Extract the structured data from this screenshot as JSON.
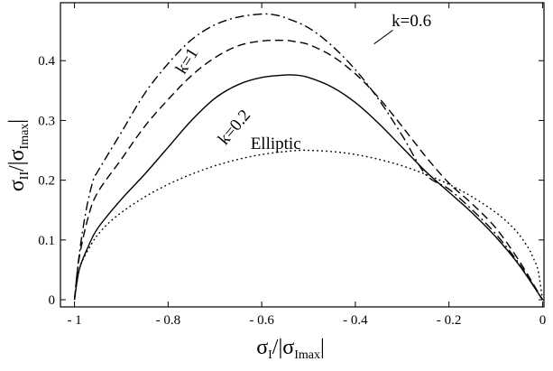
{
  "chart_data": {
    "type": "line",
    "title": "",
    "xlabel": {
      "main": "σ",
      "sub": "I",
      "separator": "/|σ",
      "sub2": "Imax",
      "close": "|"
    },
    "ylabel": {
      "main": "σ",
      "sub": "II",
      "separator": "/|σ",
      "sub2": "Imax",
      "close": "|"
    },
    "xlim": [
      -1.03,
      0.003
    ],
    "ylim": [
      -0.012,
      0.497
    ],
    "grid": false,
    "x_ticks": [
      {
        "value": -1.0,
        "label": "- 1"
      },
      {
        "value": -0.8,
        "label": "- 0.8"
      },
      {
        "value": -0.6,
        "label": "- 0.6"
      },
      {
        "value": -0.4,
        "label": "- 0.4"
      },
      {
        "value": -0.2,
        "label": "- 0.2"
      },
      {
        "value": 0.0,
        "label": "0"
      }
    ],
    "y_ticks": [
      {
        "value": 0.0,
        "label": "0"
      },
      {
        "value": 0.1,
        "label": "0.1"
      },
      {
        "value": 0.2,
        "label": "0.2"
      },
      {
        "value": 0.3,
        "label": "0.3"
      },
      {
        "value": 0.4,
        "label": "0.4"
      }
    ],
    "series": [
      {
        "name": "k=1",
        "style": "dashdot",
        "x": [
          -1.0,
          -0.99,
          -0.975,
          -0.96,
          -0.95,
          -0.9,
          -0.85,
          -0.8,
          -0.75,
          -0.7,
          -0.65,
          -0.6,
          -0.575,
          -0.55,
          -0.5,
          -0.45,
          -0.4,
          -0.35,
          -0.3,
          -0.25,
          -0.2,
          -0.15,
          -0.1,
          -0.05,
          0.0
        ],
        "y": [
          0.0,
          0.075,
          0.15,
          0.2,
          0.215,
          0.28,
          0.345,
          0.395,
          0.435,
          0.46,
          0.473,
          0.478,
          0.477,
          0.472,
          0.455,
          0.425,
          0.385,
          0.335,
          0.275,
          0.21,
          0.185,
          0.15,
          0.11,
          0.06,
          0.0
        ]
      },
      {
        "name": "k=0.6",
        "style": "dashed",
        "x": [
          -1.0,
          -0.99,
          -0.97,
          -0.95,
          -0.9,
          -0.85,
          -0.8,
          -0.75,
          -0.7,
          -0.65,
          -0.6,
          -0.55,
          -0.53,
          -0.5,
          -0.45,
          -0.4,
          -0.35,
          -0.3,
          -0.25,
          -0.2,
          -0.15,
          -0.1,
          -0.05,
          0.0
        ],
        "y": [
          0.0,
          0.07,
          0.14,
          0.18,
          0.235,
          0.29,
          0.335,
          0.375,
          0.405,
          0.425,
          0.433,
          0.434,
          0.432,
          0.427,
          0.408,
          0.378,
          0.338,
          0.29,
          0.24,
          0.195,
          0.16,
          0.12,
          0.065,
          0.0
        ]
      },
      {
        "name": "k=0.2",
        "style": "solid",
        "x": [
          -1.0,
          -0.99,
          -0.97,
          -0.95,
          -0.9,
          -0.85,
          -0.8,
          -0.75,
          -0.7,
          -0.65,
          -0.6,
          -0.55,
          -0.53,
          -0.5,
          -0.45,
          -0.4,
          -0.35,
          -0.3,
          -0.25,
          -0.2,
          -0.15,
          -0.1,
          -0.05,
          0.0
        ],
        "y": [
          0.0,
          0.05,
          0.09,
          0.12,
          0.168,
          0.21,
          0.255,
          0.3,
          0.337,
          0.36,
          0.372,
          0.376,
          0.376,
          0.372,
          0.356,
          0.33,
          0.295,
          0.255,
          0.215,
          0.18,
          0.145,
          0.105,
          0.058,
          0.0
        ]
      },
      {
        "name": "Elliptic",
        "style": "dotted",
        "x": [
          -1.0,
          -0.99,
          -0.98,
          -0.96,
          -0.95,
          -0.93,
          -0.9,
          -0.85,
          -0.8,
          -0.75,
          -0.7,
          -0.65,
          -0.6,
          -0.55,
          -0.52,
          -0.5,
          -0.45,
          -0.4,
          -0.35,
          -0.3,
          -0.25,
          -0.2,
          -0.15,
          -0.1,
          -0.07,
          -0.05,
          -0.03,
          -0.02,
          -0.01,
          0.0
        ],
        "y": [
          0.0,
          0.05,
          0.07,
          0.098,
          0.109,
          0.126,
          0.146,
          0.172,
          0.193,
          0.21,
          0.224,
          0.235,
          0.243,
          0.248,
          0.25,
          0.25,
          0.248,
          0.243,
          0.235,
          0.224,
          0.21,
          0.193,
          0.172,
          0.146,
          0.126,
          0.109,
          0.086,
          0.07,
          0.05,
          0.0
        ]
      }
    ],
    "annotations": [
      {
        "text": "k=1",
        "x": -0.75,
        "y": 0.395,
        "rotate": -58
      },
      {
        "text": "k=0.6",
        "x": -0.28,
        "y": 0.458,
        "rotate": 0
      },
      {
        "text": "k=0.2",
        "x": -0.65,
        "y": 0.283,
        "rotate": -50
      },
      {
        "text": "Elliptic",
        "x": -0.57,
        "y": 0.252,
        "rotate": 0
      }
    ],
    "leader_line": {
      "from": [
        -0.36,
        0.428
      ],
      "to": [
        -0.32,
        0.451
      ]
    }
  }
}
